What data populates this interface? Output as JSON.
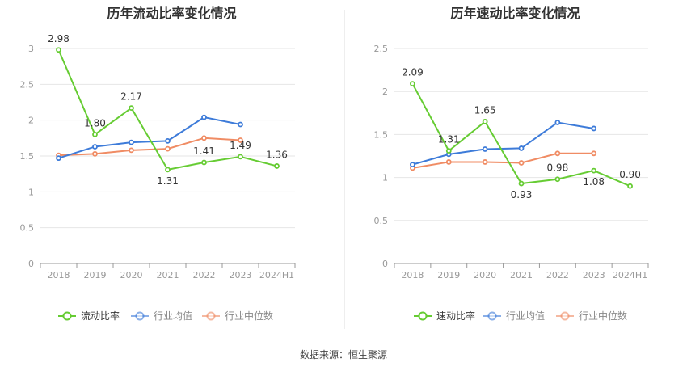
{
  "chart_data": [
    {
      "type": "line",
      "title": "历年流动比率变化情况",
      "categories": [
        "2018",
        "2019",
        "2020",
        "2021",
        "2022",
        "2023",
        "2024H1"
      ],
      "yticks": [
        "0",
        "0.5",
        "1",
        "1.5",
        "2",
        "2.5",
        "3"
      ],
      "ylim": [
        0,
        3
      ],
      "grid": true,
      "legend_position": "bottom",
      "series": [
        {
          "name": "流动比率",
          "color": "#66cc33",
          "values": [
            2.98,
            1.8,
            2.17,
            1.31,
            1.41,
            1.49,
            1.36
          ],
          "labels": [
            "2.98",
            "1.80",
            "2.17",
            "1.31",
            "1.41",
            "1.49",
            "1.36"
          ]
        },
        {
          "name": "行业均值",
          "color": "#3d7bd9",
          "values": [
            1.47,
            1.63,
            1.69,
            1.71,
            2.04,
            1.94,
            null
          ]
        },
        {
          "name": "行业中位数",
          "color": "#f08c64",
          "values": [
            1.51,
            1.53,
            1.58,
            1.6,
            1.75,
            1.72,
            null
          ]
        }
      ]
    },
    {
      "type": "line",
      "title": "历年速动比率变化情况",
      "categories": [
        "2018",
        "2019",
        "2020",
        "2021",
        "2022",
        "2023",
        "2024H1"
      ],
      "yticks": [
        "0",
        "0.5",
        "1",
        "1.5",
        "2",
        "2.5"
      ],
      "ylim": [
        0,
        2.5
      ],
      "grid": true,
      "legend_position": "bottom",
      "series": [
        {
          "name": "速动比率",
          "color": "#66cc33",
          "values": [
            2.09,
            1.31,
            1.65,
            0.93,
            0.98,
            1.08,
            0.9
          ],
          "labels": [
            "2.09",
            "1.31",
            "1.65",
            "0.93",
            "0.98",
            "1.08",
            "0.90"
          ]
        },
        {
          "name": "行业均值",
          "color": "#3d7bd9",
          "values": [
            1.15,
            1.27,
            1.33,
            1.34,
            1.64,
            1.57,
            null
          ]
        },
        {
          "name": "行业中位数",
          "color": "#f08c64",
          "values": [
            1.11,
            1.18,
            1.18,
            1.17,
            1.28,
            1.28,
            null
          ]
        }
      ]
    }
  ],
  "footer": {
    "source": "数据来源：恒生聚源"
  }
}
